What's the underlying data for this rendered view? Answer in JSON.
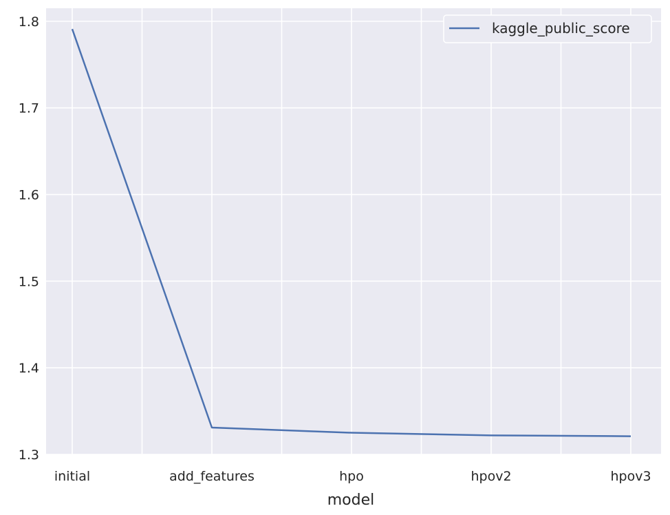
{
  "chart_data": {
    "type": "line",
    "categories": [
      "initial",
      "add_features",
      "hpo",
      "hpov2",
      "hpov3"
    ],
    "series": [
      {
        "name": "kaggle_public_score",
        "values": [
          1.791,
          1.331,
          1.325,
          1.322,
          1.321
        ],
        "color": "#4c72b0"
      }
    ],
    "xlabel": "model",
    "ylabel": "",
    "ylim": [
      1.3,
      1.815
    ],
    "yticks": [
      1.3,
      1.4,
      1.5,
      1.6,
      1.7,
      1.8
    ],
    "ytick_labels": [
      "1.3",
      "1.4",
      "1.5",
      "1.6",
      "1.7",
      "1.8"
    ],
    "grid": true,
    "legend_position": "top-right",
    "background_color": "#eaeaf2",
    "grid_color": "#ffffff"
  }
}
